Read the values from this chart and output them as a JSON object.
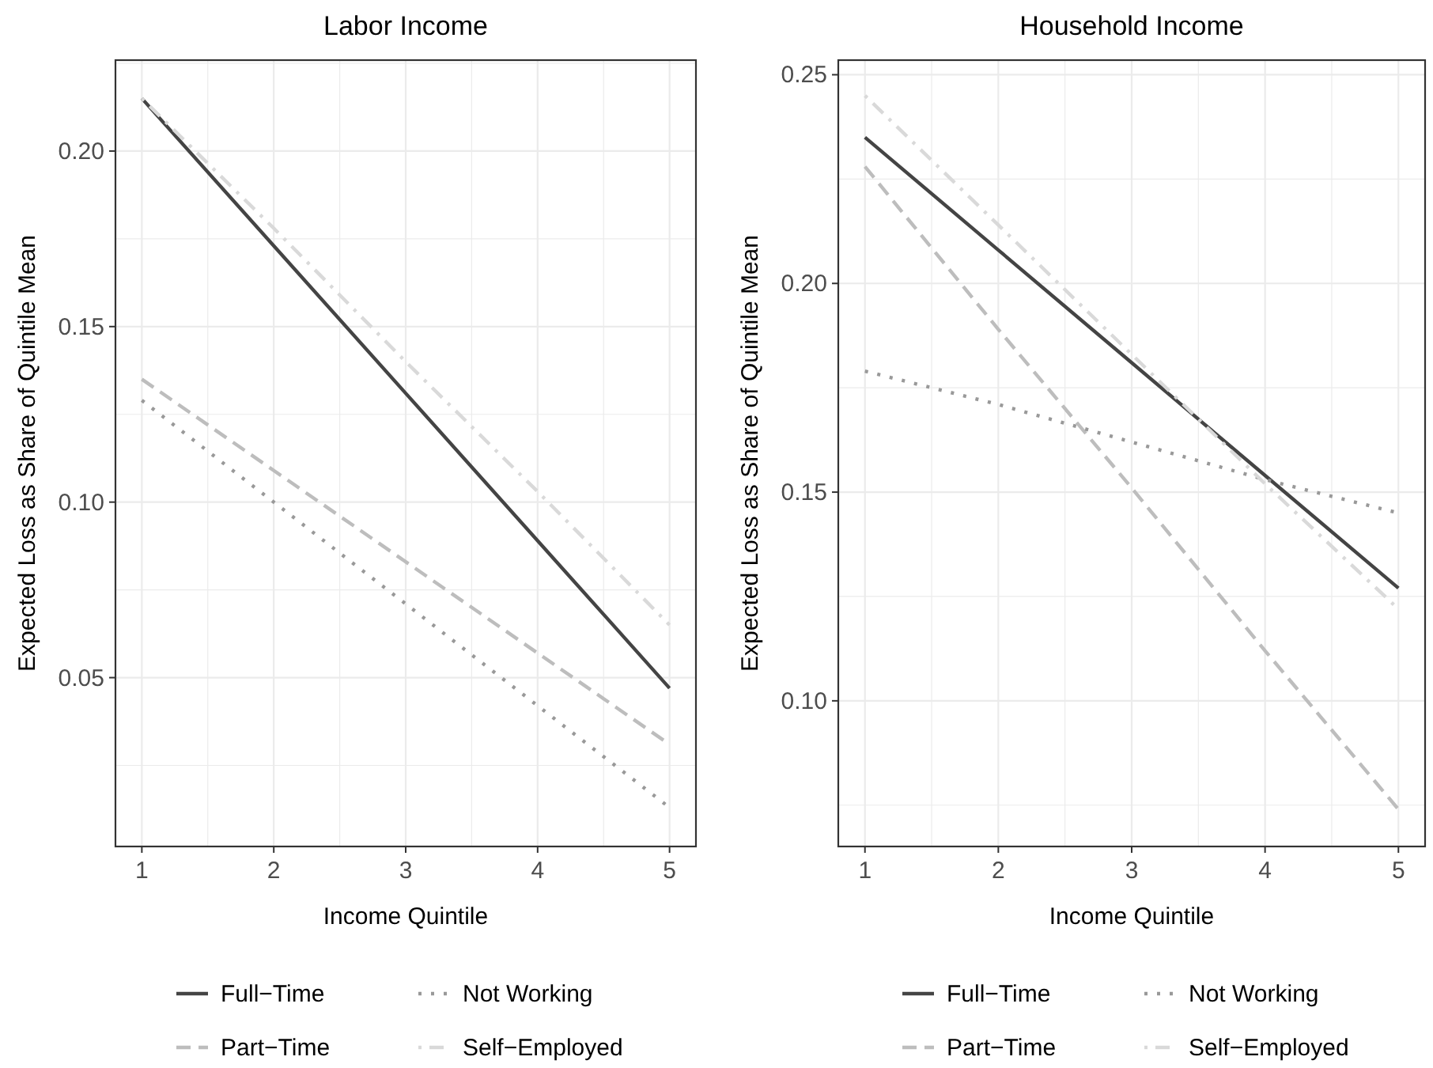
{
  "chart_data": [
    {
      "type": "line",
      "title": "Labor Income",
      "xlabel": "Income Quintile",
      "ylabel": "Expected Loss as Share of Quintile Mean",
      "x": [
        1,
        2,
        3,
        4,
        5
      ],
      "xlim": [
        0.8,
        5.2
      ],
      "xticks": [
        1,
        {
          "value": 1.5,
          "label": null
        },
        2,
        {
          "value": 2.5,
          "label": null
        },
        3,
        {
          "value": 3.5,
          "label": null
        },
        4,
        {
          "value": 4.5,
          "label": null
        },
        5
      ],
      "ylim": [
        0.0019,
        0.2259
      ],
      "yticks": [
        {
          "value": 0.025,
          "label": null
        },
        {
          "value": 0.05,
          "label": "0.05"
        },
        {
          "value": 0.075,
          "label": null
        },
        {
          "value": 0.1,
          "label": "0.10"
        },
        {
          "value": 0.125,
          "label": null
        },
        {
          "value": 0.15,
          "label": "0.15"
        },
        {
          "value": 0.175,
          "label": null
        },
        {
          "value": 0.2,
          "label": "0.20"
        },
        {
          "value": 0.225,
          "label": null
        }
      ],
      "grid": true,
      "legend": "bottom",
      "series": [
        {
          "name": "Full−Time",
          "color": "#444444",
          "line_style": "solid",
          "values": [
            0.215,
            0.173,
            0.131,
            0.089,
            0.047
          ]
        },
        {
          "name": "Part−Time",
          "color": "#bdbdbd",
          "line_style": "dashed",
          "values": [
            0.135,
            0.109,
            0.083,
            0.057,
            0.031
          ]
        },
        {
          "name": "Not Working",
          "color": "#999999",
          "line_style": "dotted",
          "values": [
            0.129,
            0.1,
            0.071,
            0.042,
            0.013
          ]
        },
        {
          "name": "Self−Employed",
          "color": "#d9d9d9",
          "line_style": "dashdot",
          "values": [
            0.215,
            0.178,
            0.14,
            0.103,
            0.065
          ]
        }
      ]
    },
    {
      "type": "line",
      "title": "Household Income",
      "xlabel": "Income Quintile",
      "ylabel": "Expected Loss as Share of Quintile Mean",
      "x": [
        1,
        2,
        3,
        4,
        5
      ],
      "xlim": [
        0.8,
        5.2
      ],
      "xticks": [
        1,
        {
          "value": 1.5,
          "label": null
        },
        2,
        {
          "value": 2.5,
          "label": null
        },
        3,
        {
          "value": 3.5,
          "label": null
        },
        4,
        {
          "value": 4.5,
          "label": null
        },
        5
      ],
      "ylim": [
        0.0651,
        0.2535
      ],
      "yticks": [
        {
          "value": 0.075,
          "label": null
        },
        {
          "value": 0.1,
          "label": "0.10"
        },
        {
          "value": 0.125,
          "label": null
        },
        {
          "value": 0.15,
          "label": "0.15"
        },
        {
          "value": 0.175,
          "label": null
        },
        {
          "value": 0.2,
          "label": "0.20"
        },
        {
          "value": 0.225,
          "label": null
        },
        {
          "value": 0.25,
          "label": "0.25"
        }
      ],
      "grid": true,
      "legend": "bottom",
      "series": [
        {
          "name": "Full−Time",
          "color": "#444444",
          "line_style": "solid",
          "values": [
            0.235,
            0.208,
            0.181,
            0.154,
            0.127
          ]
        },
        {
          "name": "Part−Time",
          "color": "#bdbdbd",
          "line_style": "dashed",
          "values": [
            0.228,
            0.189,
            0.151,
            0.112,
            0.074
          ]
        },
        {
          "name": "Not Working",
          "color": "#999999",
          "line_style": "dotted",
          "values": [
            0.179,
            0.171,
            0.162,
            0.153,
            0.145
          ]
        },
        {
          "name": "Self−Employed",
          "color": "#d9d9d9",
          "line_style": "dashdot",
          "values": [
            0.245,
            0.214,
            0.183,
            0.152,
            0.122
          ]
        }
      ]
    }
  ]
}
